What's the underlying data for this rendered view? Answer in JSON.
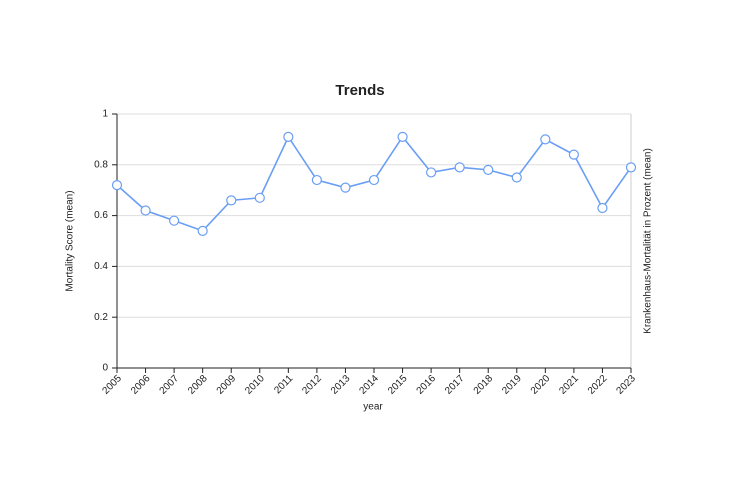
{
  "chart_data": {
    "type": "line",
    "title": "Trends",
    "x_label": "year",
    "y_label": "Mortality Score (mean)",
    "y2_label": "Krankenhaus-Mortalität in Prozent (mean)",
    "categories": [
      "2005",
      "2006",
      "2007",
      "2008",
      "2009",
      "2010",
      "2011",
      "2012",
      "2013",
      "2014",
      "2015",
      "2016",
      "2017",
      "2018",
      "2019",
      "2020",
      "2021",
      "2022",
      "2023"
    ],
    "series": [
      {
        "name": "Mortality Score (mean)",
        "color": "#6a9ef5",
        "values": [
          0.72,
          0.62,
          0.58,
          0.54,
          0.66,
          0.67,
          0.91,
          0.74,
          0.71,
          0.74,
          0.91,
          0.77,
          0.79,
          0.78,
          0.75,
          0.9,
          0.84,
          0.63,
          0.79
        ]
      }
    ],
    "ylim": [
      0,
      1
    ],
    "yticks": [
      0,
      0.2,
      0.4,
      0.6,
      0.8,
      1
    ],
    "grid": true
  }
}
